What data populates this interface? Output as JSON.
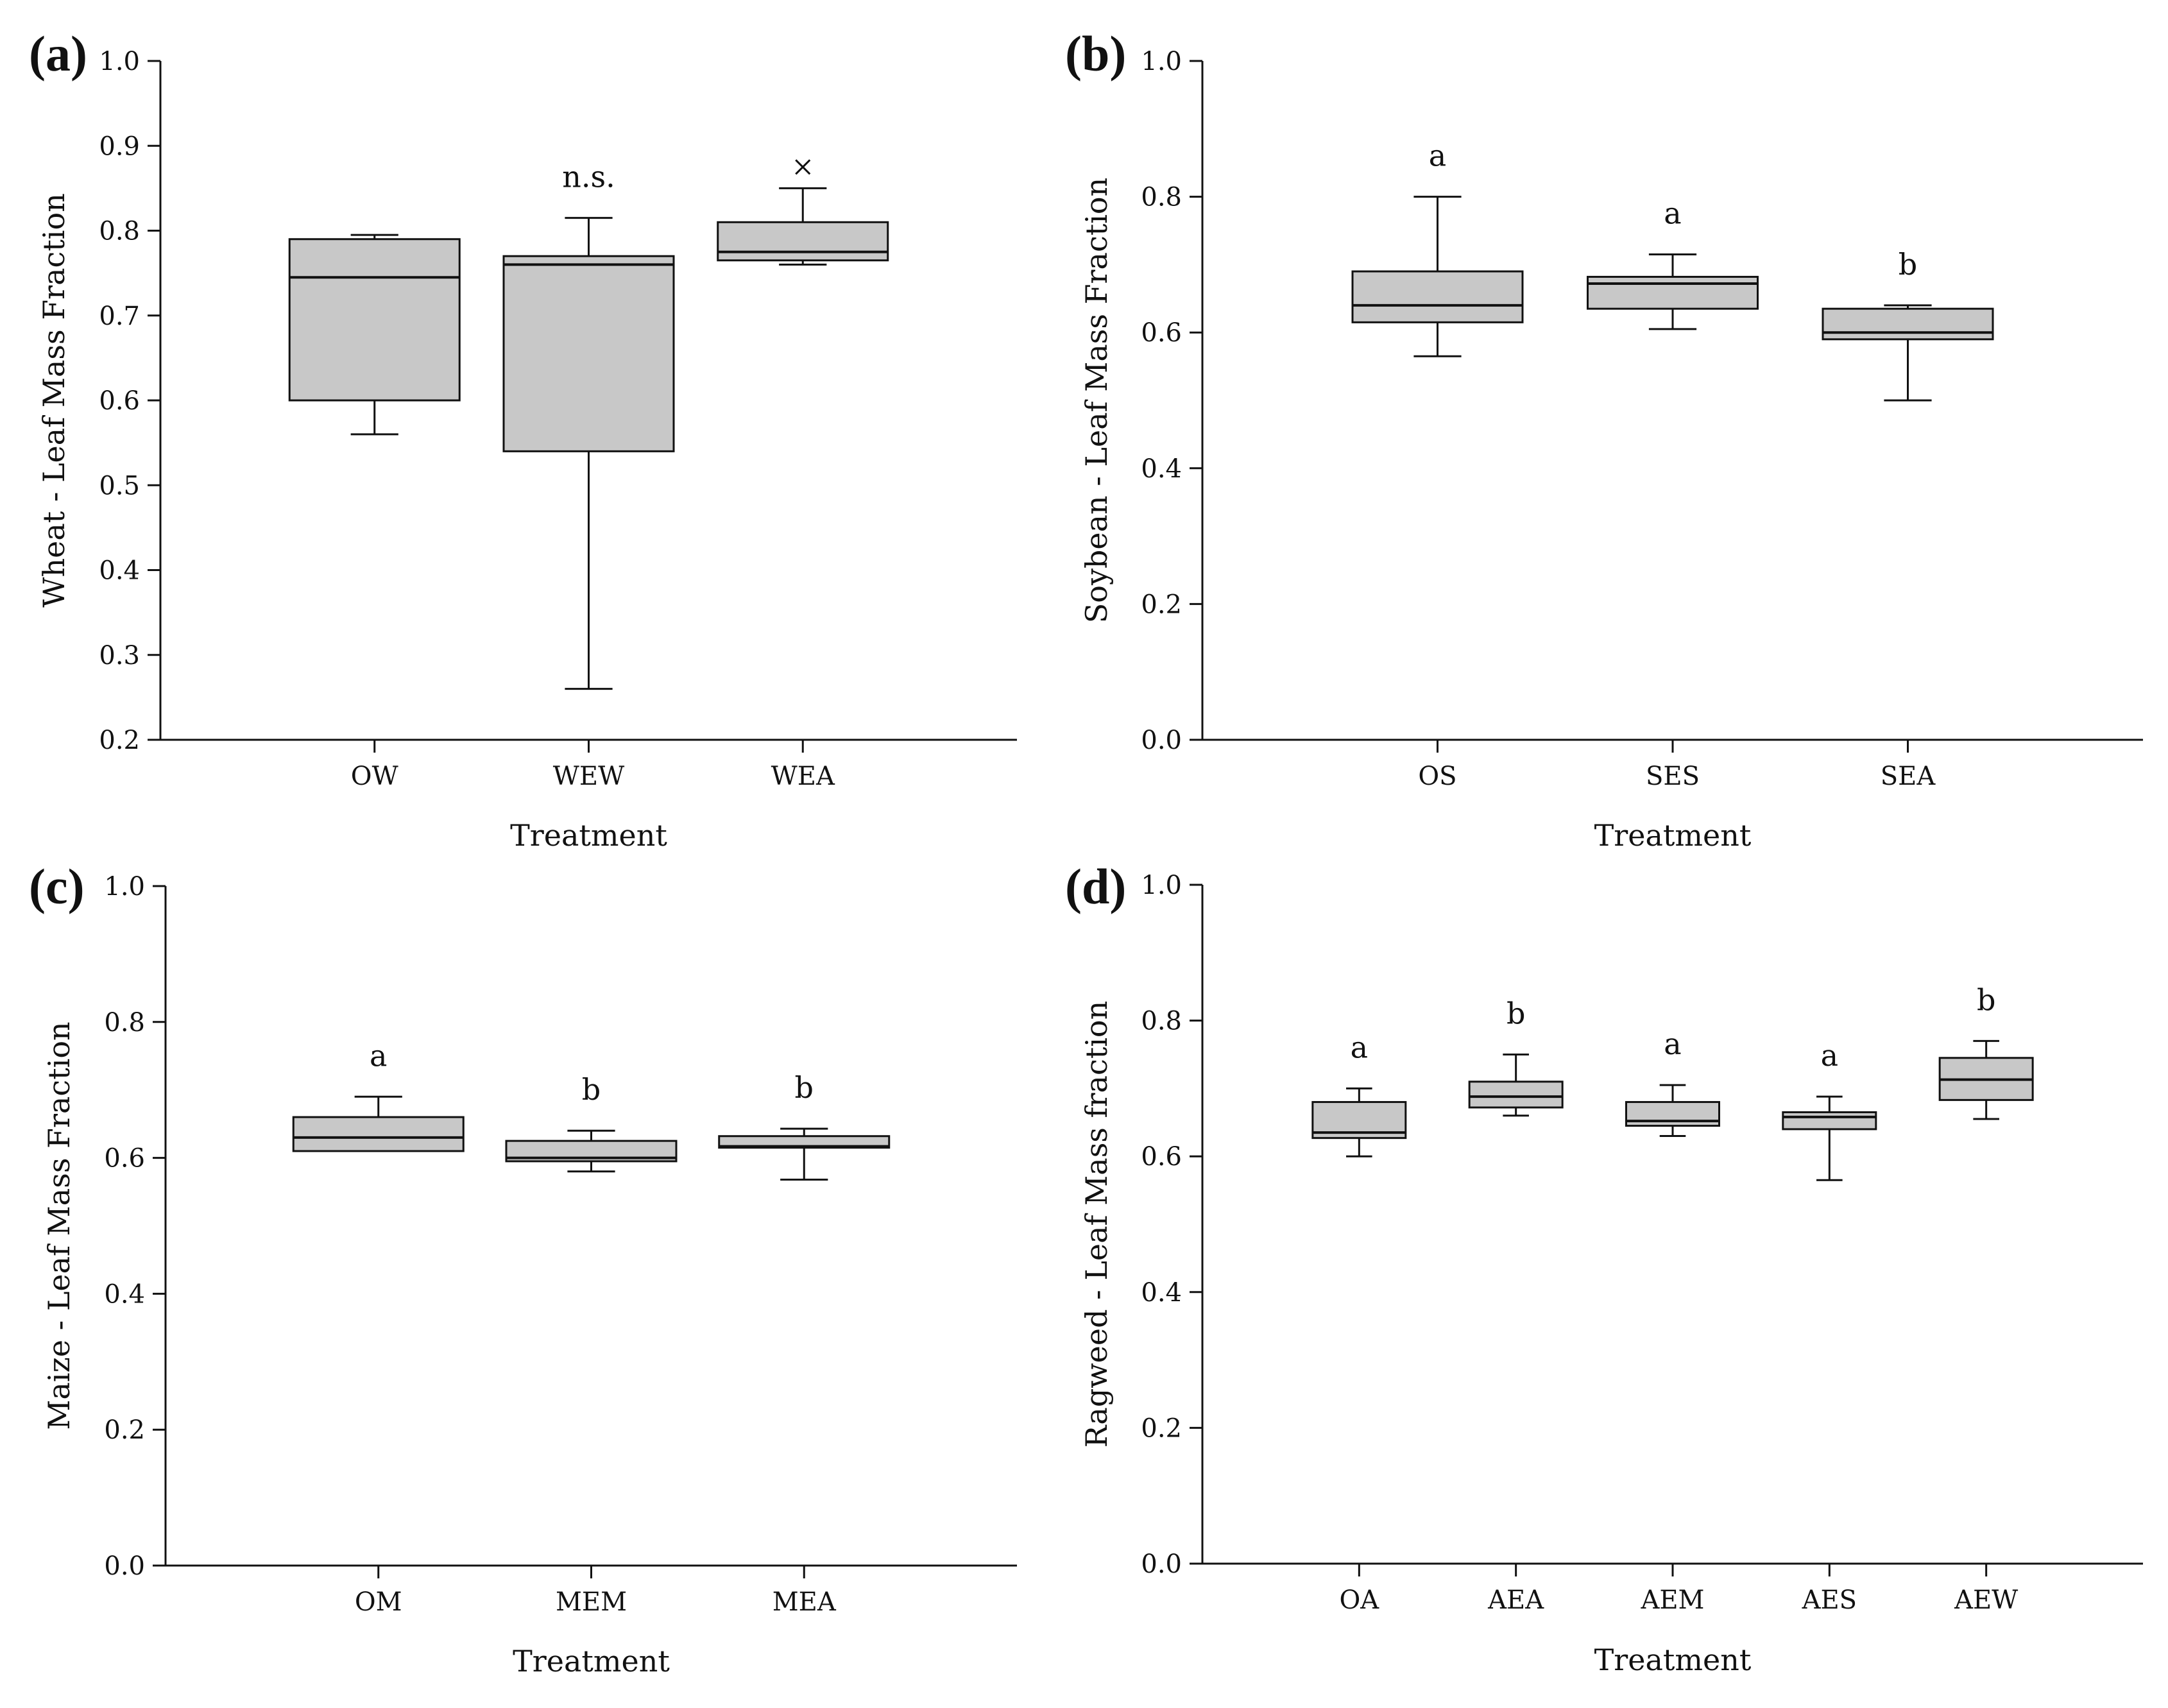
{
  "chart_data": [
    {
      "type": "box",
      "panel_label": "(a)",
      "xlabel": "Treatment",
      "ylabel": "Wheat - Leaf Mass Fraction",
      "ylim": [
        0.2,
        1.0
      ],
      "yticks": [
        "0.2",
        "0.3",
        "0.4",
        "0.5",
        "0.6",
        "0.7",
        "0.8",
        "0.9",
        "1.0"
      ],
      "categories": [
        "OW",
        "WEW",
        "WEA"
      ],
      "boxes": [
        {
          "category": "OW",
          "q1": 0.6,
          "median": 0.745,
          "q3": 0.79,
          "whisker_low": 0.56,
          "whisker_high": 0.795,
          "annotation": "",
          "outliers": []
        },
        {
          "category": "WEW",
          "q1": 0.54,
          "median": 0.76,
          "q3": 0.77,
          "whisker_low": 0.26,
          "whisker_high": 0.815,
          "annotation": "n.s.",
          "outliers": []
        },
        {
          "category": "WEA",
          "q1": 0.765,
          "median": 0.775,
          "q3": 0.81,
          "whisker_low": 0.76,
          "whisker_high": 0.85,
          "annotation": "",
          "outliers": [
            0.875
          ]
        }
      ]
    },
    {
      "type": "box",
      "panel_label": "(b)",
      "xlabel": "Treatment",
      "ylabel": "Soybean - Leaf Mass Fraction",
      "ylim": [
        0.0,
        1.0
      ],
      "yticks": [
        "0.0",
        "0.2",
        "0.4",
        "0.6",
        "0.8",
        "1.0"
      ],
      "categories": [
        "OS",
        "SES",
        "SEA"
      ],
      "boxes": [
        {
          "category": "OS",
          "q1": 0.615,
          "median": 0.64,
          "q3": 0.69,
          "whisker_low": 0.565,
          "whisker_high": 0.8,
          "annotation": "a",
          "outliers": []
        },
        {
          "category": "SES",
          "q1": 0.635,
          "median": 0.672,
          "q3": 0.682,
          "whisker_low": 0.605,
          "whisker_high": 0.715,
          "annotation": "a",
          "outliers": []
        },
        {
          "category": "SEA",
          "q1": 0.59,
          "median": 0.6,
          "q3": 0.635,
          "whisker_low": 0.5,
          "whisker_high": 0.64,
          "annotation": "b",
          "outliers": []
        }
      ]
    },
    {
      "type": "box",
      "panel_label": "(c)",
      "xlabel": "Treatment",
      "ylabel": "Maize - Leaf Mass Fraction",
      "ylim": [
        0.0,
        1.0
      ],
      "yticks": [
        "0.0",
        "0.2",
        "0.4",
        "0.6",
        "0.8",
        "1.0"
      ],
      "categories": [
        "OM",
        "MEM",
        "MEA"
      ],
      "boxes": [
        {
          "category": "OM",
          "q1": 0.61,
          "median": 0.63,
          "q3": 0.66,
          "whisker_low": 0.61,
          "whisker_high": 0.69,
          "annotation": "a",
          "outliers": []
        },
        {
          "category": "MEM",
          "q1": 0.595,
          "median": 0.6,
          "q3": 0.625,
          "whisker_low": 0.58,
          "whisker_high": 0.64,
          "annotation": "b",
          "outliers": []
        },
        {
          "category": "MEA",
          "q1": 0.615,
          "median": 0.617,
          "q3": 0.632,
          "whisker_low": 0.568,
          "whisker_high": 0.643,
          "annotation": "b",
          "outliers": []
        }
      ]
    },
    {
      "type": "box",
      "panel_label": "(d)",
      "xlabel": "Treatment",
      "ylabel": "Ragweed - Leaf Mass fraction",
      "ylim": [
        0.0,
        1.0
      ],
      "yticks": [
        "0.0",
        "0.2",
        "0.4",
        "0.6",
        "0.8",
        "1.0"
      ],
      "categories": [
        "OA",
        "AEA",
        "AEM",
        "AES",
        "AEW"
      ],
      "boxes": [
        {
          "category": "OA",
          "q1": 0.627,
          "median": 0.635,
          "q3": 0.68,
          "whisker_low": 0.6,
          "whisker_high": 0.7,
          "annotation": "a",
          "outliers": []
        },
        {
          "category": "AEA",
          "q1": 0.672,
          "median": 0.688,
          "q3": 0.71,
          "whisker_low": 0.66,
          "whisker_high": 0.75,
          "annotation": "b",
          "outliers": []
        },
        {
          "category": "AEM",
          "q1": 0.645,
          "median": 0.652,
          "q3": 0.68,
          "whisker_low": 0.63,
          "whisker_high": 0.705,
          "annotation": "a",
          "outliers": []
        },
        {
          "category": "AES",
          "q1": 0.64,
          "median": 0.658,
          "q3": 0.665,
          "whisker_low": 0.565,
          "whisker_high": 0.688,
          "annotation": "a",
          "outliers": []
        },
        {
          "category": "AEW",
          "q1": 0.683,
          "median": 0.713,
          "q3": 0.745,
          "whisker_low": 0.655,
          "whisker_high": 0.77,
          "annotation": "b",
          "outliers": []
        }
      ]
    }
  ]
}
